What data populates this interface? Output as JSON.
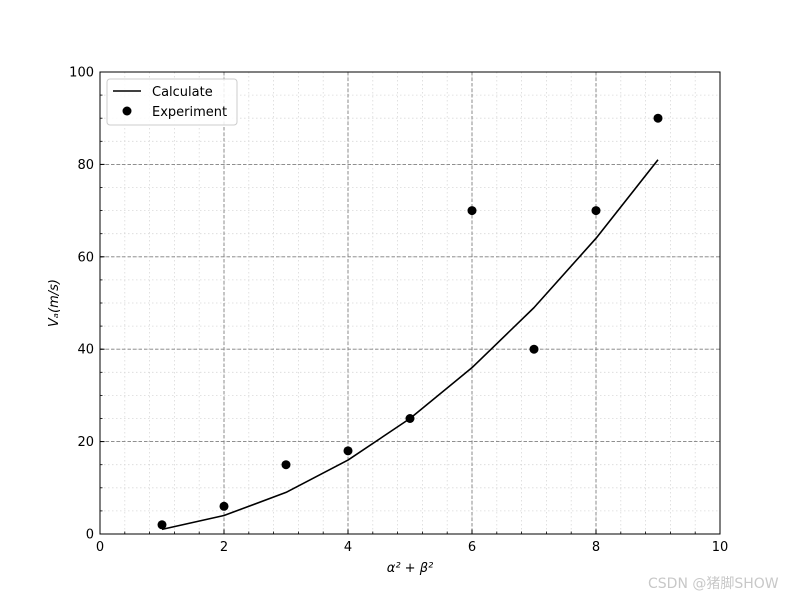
{
  "chart_data": {
    "type": "line",
    "title": "",
    "xlabel": "α² + β²",
    "ylabel": "Vₐ(m/s)",
    "xlim": [
      0,
      10
    ],
    "ylim": [
      0,
      100
    ],
    "x_major_ticks": [
      "0",
      "2",
      "4",
      "6",
      "8",
      "10"
    ],
    "y_major_ticks": [
      "0",
      "20",
      "40",
      "60",
      "80",
      "100"
    ],
    "x_minor_step": 0.4,
    "y_minor_step": 5,
    "grid": {
      "major": "dashed gray",
      "minor": "dotted light gray"
    },
    "legend": {
      "placement": "top-left"
    },
    "series": [
      {
        "name": "Calculate",
        "kind": "line",
        "color": "#000000",
        "x": [
          1,
          2,
          3,
          4,
          5,
          6,
          7,
          8,
          9
        ],
        "y": [
          1,
          4,
          9,
          16,
          25,
          36,
          49,
          64,
          81
        ]
      },
      {
        "name": "Experiment",
        "kind": "scatter",
        "color": "#000000",
        "x": [
          1,
          2,
          3,
          4,
          5,
          6,
          7,
          8,
          9
        ],
        "y": [
          2,
          6,
          15,
          18,
          25,
          70,
          40,
          70,
          90
        ]
      }
    ]
  },
  "watermark": "CSDN @猪脚SHOW"
}
